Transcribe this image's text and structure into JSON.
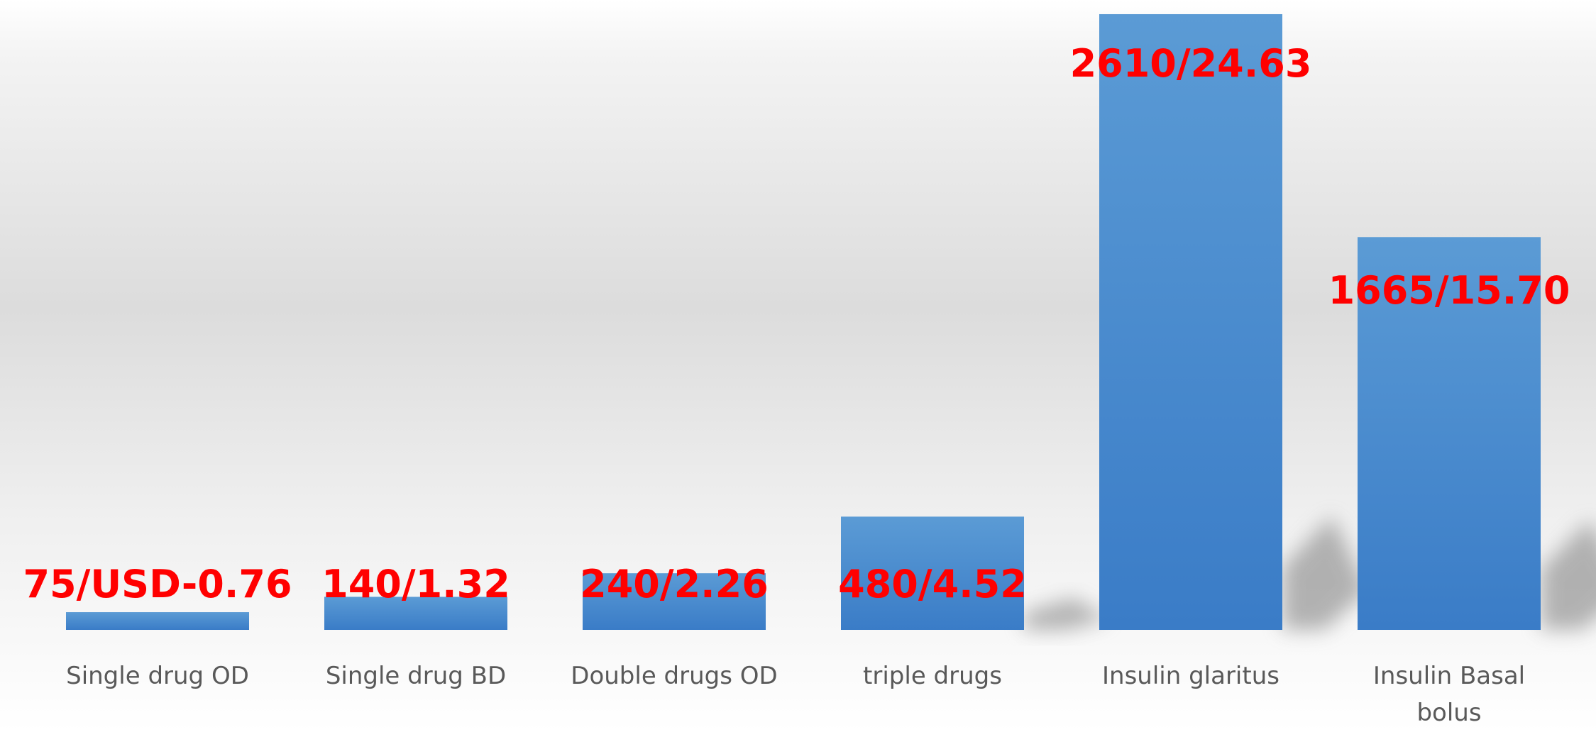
{
  "chart_data": {
    "type": "bar",
    "title": "",
    "xlabel": "",
    "ylabel": "",
    "categories": [
      "Single drug OD",
      "Single drug BD",
      "Double drugs OD",
      "triple drugs",
      "Insulin glaritus",
      "Insulin Basal bolus"
    ],
    "category_lines": [
      [
        "Single drug OD"
      ],
      [
        "Single drug BD"
      ],
      [
        "Double drugs OD"
      ],
      [
        "triple drugs"
      ],
      [
        "Insulin glaritus"
      ],
      [
        "Insulin Basal",
        "bolus"
      ]
    ],
    "values": [
      75,
      140,
      240,
      480,
      2610,
      1665
    ],
    "data_labels": [
      "75/USD-0.76",
      "140/1.32",
      "240/2.26",
      "480/4.52",
      "2610/24.63",
      "1665/15.70"
    ],
    "ylim": [
      0,
      2640
    ],
    "grid": false,
    "legend": "none",
    "colors": {
      "bar_top": "#5b9bd5",
      "bar_bottom": "#3a7cc7",
      "data_label": "#ff0000",
      "tick_label": "#595959"
    }
  }
}
